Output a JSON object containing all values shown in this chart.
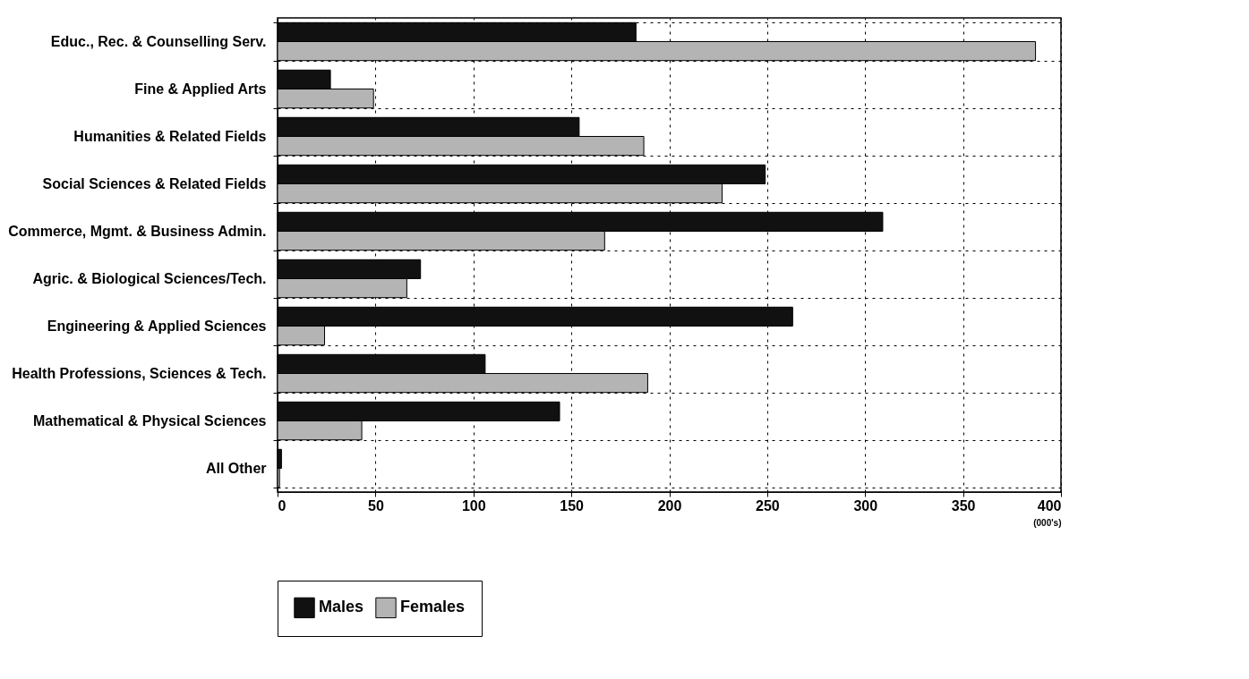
{
  "chart_data": {
    "type": "bar",
    "orientation": "horizontal",
    "xlabel": "(000's)",
    "categories": [
      "Educ., Rec. & Counselling Serv.",
      "Fine & Applied Arts",
      "Humanities & Related Fields",
      "Social Sciences & Related Fields",
      "Commerce, Mgmt. & Business Admin.",
      "Agric. & Biological Sciences/Tech.",
      "Engineering & Applied Sciences",
      "Health Professions, Sciences & Tech.",
      "Mathematical & Physical Sciences",
      "All Other"
    ],
    "series": [
      {
        "name": "Males",
        "color": "#111111",
        "values": [
          183,
          27,
          154,
          249,
          309,
          73,
          263,
          106,
          144,
          2
        ]
      },
      {
        "name": "Females",
        "color": "#b4b4b4",
        "values": [
          387,
          49,
          187,
          227,
          167,
          66,
          24,
          189,
          43,
          1
        ]
      }
    ],
    "xlim": [
      0,
      400
    ],
    "xticks": [
      0,
      50,
      100,
      150,
      200,
      250,
      300,
      350,
      400
    ],
    "grid": true,
    "legend": "bottom"
  }
}
